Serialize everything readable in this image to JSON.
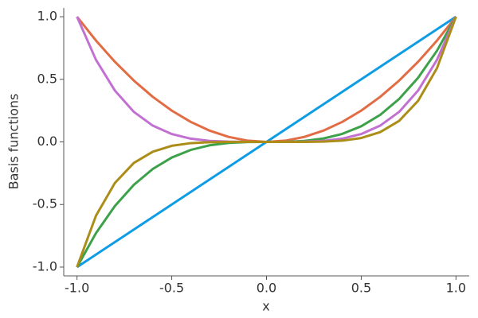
{
  "chart_data": {
    "type": "line",
    "xlabel": "x",
    "ylabel": "Basis functions",
    "x": [
      -1,
      -0.9,
      -0.8,
      -0.7,
      -0.6,
      -0.5,
      -0.4,
      -0.3,
      -0.2,
      -0.1,
      0,
      0.1,
      0.2,
      0.3,
      0.4,
      0.5,
      0.6,
      0.7,
      0.8,
      0.9,
      1
    ],
    "series": [
      {
        "color": "#0e9de5",
        "values": [
          -1,
          -0.9,
          -0.8,
          -0.7,
          -0.6,
          -0.5,
          -0.4,
          -0.3,
          -0.2,
          -0.1,
          0,
          0.1,
          0.2,
          0.3,
          0.4,
          0.5,
          0.6,
          0.7,
          0.8,
          0.9,
          1
        ]
      },
      {
        "color": "#e26d45",
        "values": [
          1,
          0.81,
          0.64,
          0.49,
          0.36,
          0.25,
          0.16,
          0.09,
          0.04,
          0.01,
          0,
          0.01,
          0.04,
          0.09,
          0.16,
          0.25,
          0.36,
          0.49,
          0.64,
          0.81,
          1
        ]
      },
      {
        "color": "#3da14a",
        "values": [
          -1,
          -0.729,
          -0.512,
          -0.343,
          -0.216,
          -0.125,
          -0.064,
          -0.027,
          -0.008,
          -0.001,
          0,
          0.001,
          0.008,
          0.027,
          0.064,
          0.125,
          0.216,
          0.343,
          0.512,
          0.729,
          1
        ]
      },
      {
        "color": "#c271d2",
        "values": [
          1,
          0.656,
          0.41,
          0.24,
          0.13,
          0.063,
          0.026,
          0.008,
          0.002,
          0,
          0,
          0,
          0.002,
          0.008,
          0.026,
          0.063,
          0.13,
          0.24,
          0.41,
          0.656,
          1
        ]
      },
      {
        "color": "#ac8d18",
        "values": [
          -1,
          -0.59,
          -0.328,
          -0.168,
          -0.078,
          -0.031,
          -0.01,
          -0.002,
          0,
          0,
          0,
          0,
          0,
          0.002,
          0.01,
          0.031,
          0.078,
          0.168,
          0.328,
          0.59,
          1
        ]
      }
    ],
    "xlim": [
      -1.07,
      1.07
    ],
    "ylim": [
      -1.07,
      1.07
    ],
    "xticks": [
      {
        "value": -1,
        "label": "-1.0"
      },
      {
        "value": -0.5,
        "label": "-0.5"
      },
      {
        "value": 0,
        "label": "0.0"
      },
      {
        "value": 0.5,
        "label": "0.5"
      },
      {
        "value": 1,
        "label": "1.0"
      }
    ],
    "yticks": [
      {
        "value": -1,
        "label": "-1.0"
      },
      {
        "value": -0.5,
        "label": "-0.5"
      },
      {
        "value": 0,
        "label": "0.0"
      },
      {
        "value": 0.5,
        "label": "0.5"
      },
      {
        "value": 1,
        "label": "1.0"
      }
    ],
    "grid": false
  }
}
